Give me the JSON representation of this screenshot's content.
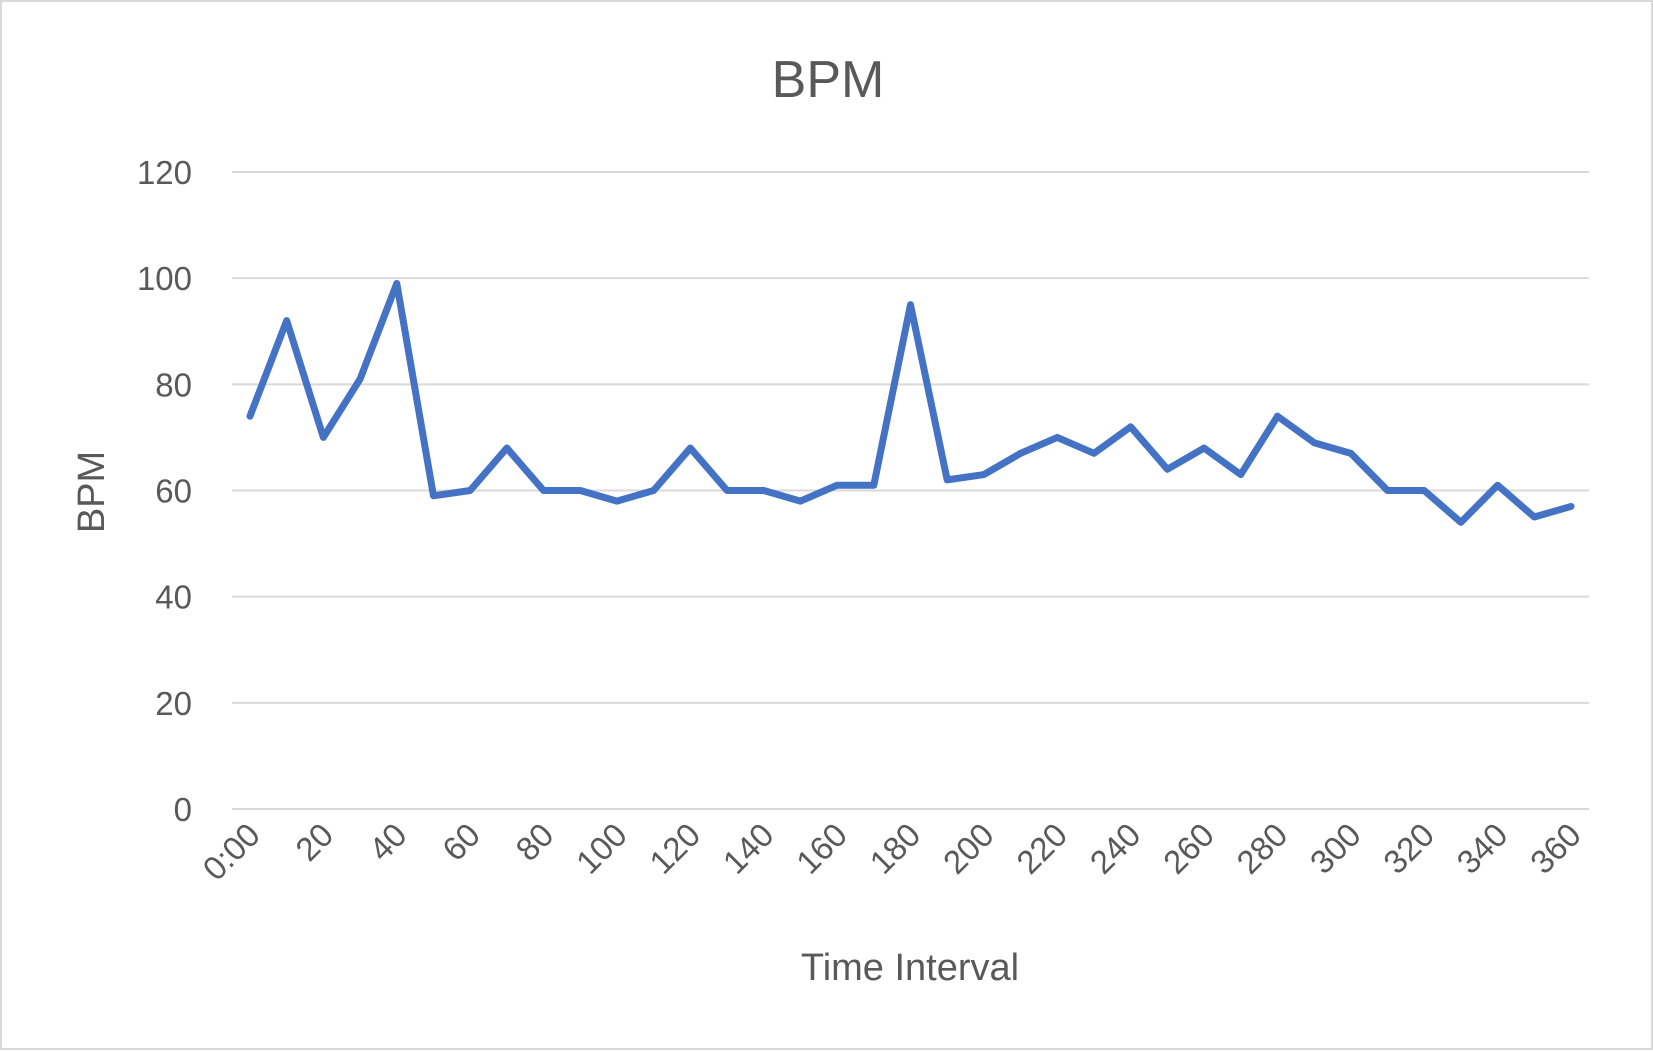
{
  "chart_data": {
    "type": "line",
    "title": "BPM",
    "xlabel": "Time Interval",
    "ylabel": "BPM",
    "ylim": [
      0,
      120
    ],
    "yticks": [
      0,
      20,
      40,
      60,
      80,
      100,
      120
    ],
    "grid": true,
    "legend": "none",
    "series_color": "#4472c4",
    "x_tick_labels": [
      "0:00",
      "20",
      "40",
      "60",
      "80",
      "100",
      "120",
      "140",
      "160",
      "180",
      "200",
      "220",
      "240",
      "260",
      "280",
      "300",
      "320",
      "340",
      "360"
    ],
    "x": [
      0,
      10,
      20,
      30,
      40,
      50,
      60,
      70,
      80,
      90,
      100,
      110,
      120,
      130,
      140,
      150,
      160,
      170,
      180,
      190,
      200,
      210,
      220,
      230,
      240,
      250,
      260,
      270,
      280,
      290,
      300,
      310,
      320,
      330,
      340,
      350,
      360
    ],
    "series": [
      {
        "values": [
          74,
          92,
          70,
          81,
          99,
          59,
          60,
          68,
          60,
          60,
          58,
          60,
          68,
          60,
          60,
          58,
          61,
          61,
          95,
          62,
          63,
          67,
          70,
          67,
          72,
          64,
          68,
          63,
          74,
          69,
          67,
          60,
          60,
          54,
          61,
          55,
          57
        ]
      }
    ]
  }
}
